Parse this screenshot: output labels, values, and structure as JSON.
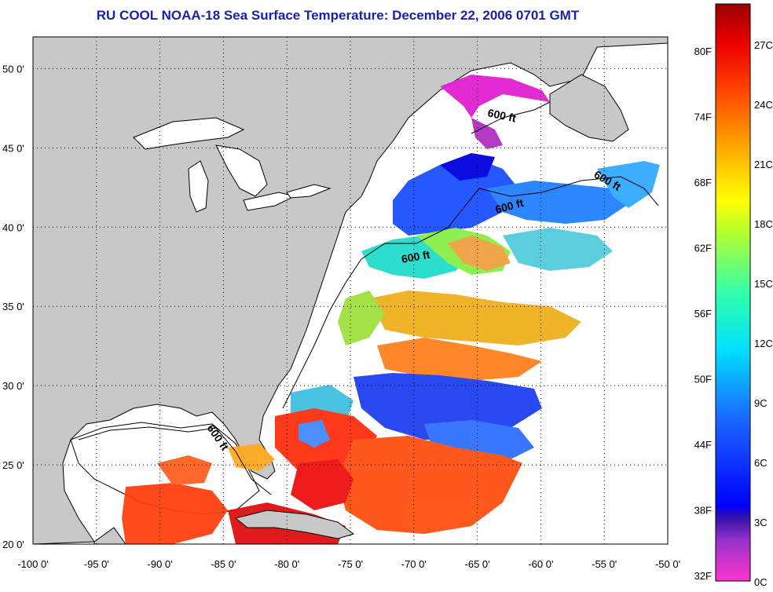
{
  "title": "RU COOL  NOAA-18  Sea Surface Temperature:  December 22, 2006 0701 GMT",
  "map": {
    "lon_range": [
      -100,
      -50
    ],
    "lat_range": [
      20,
      52
    ],
    "lon_ticks": [
      "-100 0'",
      "-95 0'",
      "-90 0'",
      "-85 0'",
      "-80 0'",
      "-75 0'",
      "-70 0'",
      "-65 0'",
      "-60 0'",
      "-55 0'",
      "-50 0'"
    ],
    "lat_ticks": [
      "20 0'",
      "25 0'",
      "30 0'",
      "35 0'",
      "40 0'",
      "45 0'",
      "50 0'"
    ],
    "contour_labels": [
      "600 ft",
      "600 ft",
      "600 ft",
      "600 ft",
      "600 ft"
    ],
    "colors": {
      "land": "#c8c8c8",
      "cloud_or_no_data": "#ffffff",
      "coast": "#000000"
    }
  },
  "colorbar": {
    "fahrenheit_labels": [
      "80F",
      "74F",
      "68F",
      "62F",
      "56F",
      "50F",
      "44F",
      "38F",
      "32F"
    ],
    "celsius_labels": [
      "27C",
      "24C",
      "21C",
      "18C",
      "15C",
      "12C",
      "9C",
      "6C",
      "3C",
      "0C"
    ],
    "range_c": [
      0,
      28
    ]
  }
}
